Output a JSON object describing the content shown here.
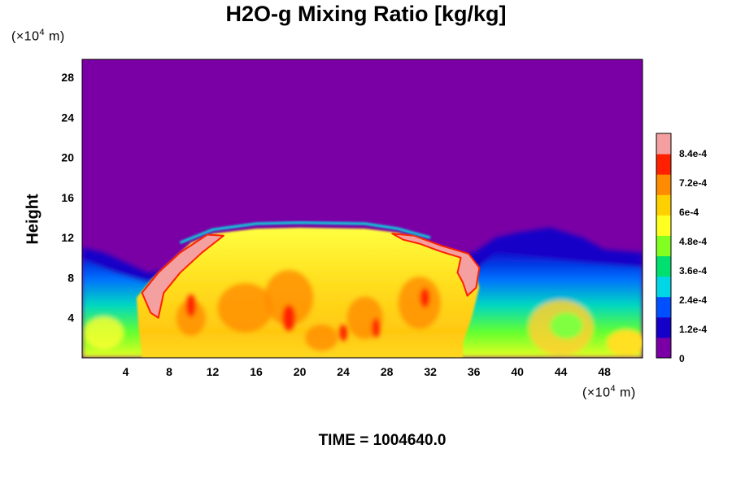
{
  "chart_data": {
    "type": "heatmap",
    "title": "H2O-g Mixing Ratio [kg/kg]",
    "ylabel": "Height",
    "xlabel": "",
    "x_unit": {
      "prefix": "(×10",
      "exp": "4",
      "suffix": " m)"
    },
    "y_unit": {
      "prefix": "(×10",
      "exp": "4",
      "suffix": " m)"
    },
    "x_ticks": [
      4,
      8,
      12,
      16,
      20,
      24,
      28,
      32,
      36,
      40,
      44,
      48
    ],
    "y_ticks": [
      4,
      8,
      12,
      16,
      20,
      24,
      28
    ],
    "xlim": [
      0,
      51.5
    ],
    "ylim": [
      0,
      29.8
    ],
    "colorbar": {
      "min": 0,
      "max": 0.00092,
      "tick_labels": [
        "8.4e-4",
        "7.2e-4",
        "6e-4",
        "4.8e-4",
        "3.6e-4",
        "2.4e-4",
        "1.2e-4",
        "0"
      ],
      "tick_values": [
        0.00084,
        0.00072,
        0.0006,
        0.00048,
        0.00036,
        0.00024,
        0.00012,
        0
      ],
      "colors": [
        "#7a00a6",
        "#1400c8",
        "#0050ff",
        "#00d6e6",
        "#00e070",
        "#80ff20",
        "#ffff20",
        "#ffd000",
        "#ff8c00",
        "#ff2000",
        "#f5a0a0"
      ]
    },
    "background_value": 0,
    "features": [
      {
        "name": "cloud-body",
        "x_range": [
          5,
          37
        ],
        "y_top": 12.5,
        "value": 0.00063
      },
      {
        "name": "anvil-outline",
        "x_range": [
          6,
          36
        ],
        "y_top": 12.5,
        "value": 0.00092
      },
      {
        "name": "moist-boundary-layer",
        "x_range": [
          0,
          51.5
        ],
        "y_top": 8,
        "value": 0.00045
      }
    ],
    "grid": false,
    "legend": "colorbar-right"
  },
  "footer": {
    "time_label": "TIME = 1004640.0"
  }
}
